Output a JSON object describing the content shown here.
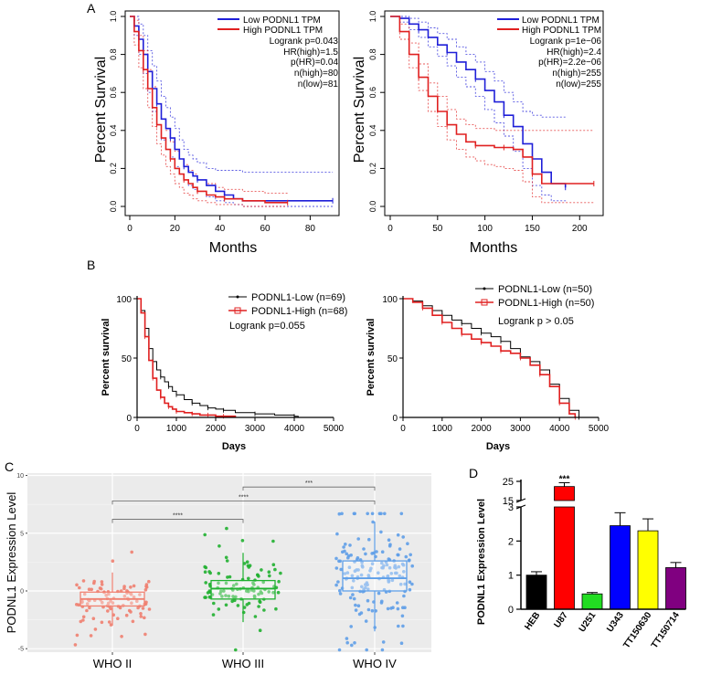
{
  "panel_labels": {
    "a": "A",
    "b": "B",
    "c": "C",
    "d": "D"
  },
  "colors": {
    "low": "#1f1fd8",
    "high": "#e02020",
    "black": "#000000",
    "who2": "#f08070",
    "who3": "#20b030",
    "who4": "#5f9fe8",
    "grid_bg": "#ebebeb"
  },
  "chart_data": [
    {
      "id": "A1",
      "type": "line",
      "ylabel": "Percent Survival",
      "xlabel": "Months",
      "xlim": [
        0,
        92
      ],
      "ylim": [
        0,
        1
      ],
      "xticks": [
        0,
        20,
        40,
        60,
        80
      ],
      "yticks": [
        0.0,
        0.2,
        0.4,
        0.6,
        0.8,
        1.0
      ],
      "legend": [
        "Low PODNL1 TPM",
        "High PODNL1 TPM"
      ],
      "stats": [
        "Logrank p=0.043",
        "HR(high)=1.5",
        "p(HR)=0.04",
        "n(high)=80",
        "n(low)=81"
      ],
      "series": [
        {
          "name": "Low PODNL1 TPM",
          "color": "#1f1fd8",
          "x": [
            0,
            2,
            4,
            6,
            8,
            10,
            12,
            14,
            16,
            18,
            20,
            22,
            24,
            26,
            28,
            30,
            34,
            38,
            42,
            46,
            50,
            90
          ],
          "y": [
            1,
            0.95,
            0.88,
            0.8,
            0.71,
            0.62,
            0.54,
            0.46,
            0.41,
            0.36,
            0.3,
            0.25,
            0.21,
            0.18,
            0.16,
            0.14,
            0.11,
            0.08,
            0.06,
            0.04,
            0.03,
            0.03
          ],
          "upper": [
            1,
            1,
            0.96,
            0.9,
            0.82,
            0.74,
            0.66,
            0.58,
            0.52,
            0.47,
            0.41,
            0.35,
            0.3,
            0.27,
            0.25,
            0.23,
            0.2,
            0.19,
            0.19,
            0.19,
            0.18,
            0.18
          ],
          "lower": [
            1,
            0.9,
            0.8,
            0.7,
            0.6,
            0.5,
            0.43,
            0.35,
            0.3,
            0.26,
            0.21,
            0.17,
            0.14,
            0.11,
            0.09,
            0.08,
            0.05,
            0.03,
            0.02,
            0.01,
            0.0,
            0.0
          ]
        },
        {
          "name": "High PODNL1 TPM",
          "color": "#e02020",
          "x": [
            0,
            2,
            4,
            6,
            8,
            10,
            12,
            14,
            16,
            18,
            20,
            22,
            24,
            26,
            28,
            30,
            34,
            38,
            42,
            50,
            60,
            70
          ],
          "y": [
            1,
            0.92,
            0.82,
            0.72,
            0.62,
            0.52,
            0.43,
            0.36,
            0.3,
            0.25,
            0.2,
            0.17,
            0.14,
            0.12,
            0.1,
            0.08,
            0.06,
            0.05,
            0.04,
            0.03,
            0.02,
            0.02
          ],
          "upper": [
            1,
            0.98,
            0.9,
            0.82,
            0.72,
            0.63,
            0.54,
            0.46,
            0.4,
            0.34,
            0.29,
            0.25,
            0.22,
            0.19,
            0.17,
            0.14,
            0.12,
            0.1,
            0.09,
            0.08,
            0.07,
            0.07
          ],
          "lower": [
            1,
            0.85,
            0.73,
            0.62,
            0.52,
            0.42,
            0.33,
            0.27,
            0.21,
            0.17,
            0.12,
            0.1,
            0.07,
            0.06,
            0.04,
            0.03,
            0.02,
            0.01,
            0.01,
            0.0,
            0.0,
            0.0
          ]
        }
      ]
    },
    {
      "id": "A2",
      "type": "line",
      "ylabel": "Percent Survival",
      "xlabel": "Months",
      "xlim": [
        0,
        220
      ],
      "ylim": [
        0,
        1
      ],
      "xticks": [
        0,
        50,
        100,
        150,
        200
      ],
      "yticks": [
        0.0,
        0.2,
        0.4,
        0.6,
        0.8,
        1.0
      ],
      "legend": [
        "Low PODNL1 TPM",
        "High PODNL1 TPM"
      ],
      "stats": [
        "Logrank p=1e−06",
        "HR(high)=2.4",
        "p(HR)=2.2e−06",
        "n(high)=255",
        "n(low)=255"
      ],
      "series": [
        {
          "name": "Low PODNL1 TPM",
          "color": "#1f1fd8",
          "x": [
            0,
            10,
            20,
            30,
            40,
            50,
            60,
            70,
            80,
            90,
            100,
            110,
            120,
            130,
            140,
            150,
            160,
            170,
            185
          ],
          "y": [
            1,
            0.99,
            0.96,
            0.93,
            0.89,
            0.85,
            0.81,
            0.76,
            0.72,
            0.67,
            0.61,
            0.55,
            0.48,
            0.42,
            0.33,
            0.25,
            0.18,
            0.12,
            0.1
          ],
          "upper": [
            1,
            1,
            0.99,
            0.97,
            0.94,
            0.91,
            0.88,
            0.84,
            0.8,
            0.76,
            0.71,
            0.66,
            0.6,
            0.55,
            0.5,
            0.48,
            0.47,
            0.47,
            0.47
          ],
          "lower": [
            1,
            0.97,
            0.93,
            0.89,
            0.84,
            0.79,
            0.74,
            0.68,
            0.63,
            0.58,
            0.51,
            0.44,
            0.37,
            0.29,
            0.2,
            0.11,
            0.06,
            0.03,
            0.02
          ]
        },
        {
          "name": "High PODNL1 TPM",
          "color": "#e02020",
          "x": [
            0,
            10,
            20,
            30,
            40,
            50,
            60,
            70,
            80,
            90,
            100,
            110,
            120,
            130,
            140,
            150,
            160,
            170,
            215
          ],
          "y": [
            1,
            0.92,
            0.8,
            0.68,
            0.58,
            0.5,
            0.43,
            0.38,
            0.34,
            0.32,
            0.32,
            0.31,
            0.31,
            0.3,
            0.26,
            0.17,
            0.12,
            0.12,
            0.12
          ],
          "upper": [
            1,
            0.96,
            0.86,
            0.75,
            0.65,
            0.58,
            0.51,
            0.46,
            0.43,
            0.41,
            0.41,
            0.4,
            0.4,
            0.4,
            0.4,
            0.4,
            0.4,
            0.4,
            0.4
          ],
          "lower": [
            1,
            0.88,
            0.73,
            0.61,
            0.5,
            0.42,
            0.35,
            0.3,
            0.26,
            0.24,
            0.22,
            0.21,
            0.2,
            0.19,
            0.13,
            0.05,
            0.02,
            0.02,
            0.02
          ]
        }
      ]
    },
    {
      "id": "B1",
      "type": "line",
      "ylabel": "Percent survival",
      "xlabel": "Days",
      "xlim": [
        0,
        5000
      ],
      "ylim": [
        0,
        100
      ],
      "xticks": [
        0,
        1000,
        2000,
        3000,
        4000,
        5000
      ],
      "yticks": [
        0,
        50,
        100
      ],
      "legend": [
        "PODNL1-Low (n=69)",
        "PODNL1-High (n=68)"
      ],
      "stats": [
        "Logrank p=0.055"
      ],
      "series": [
        {
          "name": "PODNL1-Low (n=69)",
          "color": "#000000",
          "x": [
            0,
            100,
            200,
            300,
            400,
            500,
            600,
            700,
            800,
            900,
            1000,
            1200,
            1400,
            1600,
            1800,
            2000,
            2200,
            2500,
            3000,
            3500,
            4000,
            4100
          ],
          "y": [
            100,
            90,
            75,
            58,
            47,
            40,
            34,
            30,
            26,
            22,
            19,
            15,
            12,
            10,
            8,
            7,
            6,
            4,
            3,
            2,
            1,
            0
          ]
        },
        {
          "name": "PODNL1-High (n=68)",
          "color": "#e02020",
          "x": [
            0,
            100,
            200,
            300,
            400,
            500,
            600,
            700,
            800,
            900,
            1000,
            1200,
            1400,
            1600,
            1800,
            2000,
            2200,
            2500
          ],
          "y": [
            100,
            88,
            68,
            48,
            33,
            23,
            17,
            12,
            9,
            7,
            5,
            4,
            3,
            2,
            2,
            1,
            1,
            0
          ]
        }
      ]
    },
    {
      "id": "B2",
      "type": "line",
      "ylabel": "Percent survival",
      "xlabel": "Days",
      "xlim": [
        0,
        5000
      ],
      "ylim": [
        0,
        100
      ],
      "xticks": [
        0,
        1000,
        2000,
        3000,
        4000,
        5000
      ],
      "yticks": [
        0,
        50,
        100
      ],
      "legend": [
        "PODNL1-Low (n=50)",
        "PODNL1-High (n=50)"
      ],
      "stats": [
        "Logrank p > 0.05"
      ],
      "series": [
        {
          "name": "PODNL1-Low (n=50)",
          "color": "#000000",
          "x": [
            0,
            250,
            500,
            750,
            1000,
            1250,
            1500,
            1750,
            2000,
            2250,
            2500,
            2750,
            3000,
            3250,
            3500,
            3750,
            4000,
            4250,
            4500
          ],
          "y": [
            100,
            98,
            94,
            90,
            86,
            82,
            79,
            75,
            71,
            68,
            64,
            58,
            51,
            47,
            40,
            28,
            16,
            6,
            0
          ]
        },
        {
          "name": "PODNL1-High (n=50)",
          "color": "#e02020",
          "x": [
            0,
            250,
            500,
            750,
            1000,
            1250,
            1500,
            1750,
            2000,
            2250,
            2500,
            2750,
            3000,
            3250,
            3500,
            3750,
            4000,
            4250,
            4400
          ],
          "y": [
            100,
            97,
            92,
            86,
            80,
            75,
            70,
            66,
            63,
            60,
            56,
            54,
            50,
            44,
            36,
            26,
            12,
            3,
            0
          ]
        }
      ]
    },
    {
      "id": "C",
      "type": "scatter",
      "ylabel": "PODNL1 Expression Level",
      "xlabel": "",
      "categories": [
        "WHO II",
        "WHO III",
        "WHO IV"
      ],
      "ylim": [
        -5.3,
        10.2
      ],
      "yticks": [
        -5,
        0,
        5,
        10
      ],
      "box": [
        {
          "q1": -1.3,
          "median": -0.7,
          "q3": -0.1,
          "whisker_low": -3.0,
          "whisker_high": 1.6,
          "n": 100
        },
        {
          "q1": -0.7,
          "median": 0.2,
          "q3": 0.9,
          "whisker_low": -2.7,
          "whisker_high": 3.3,
          "n": 105
        },
        {
          "q1": 0.0,
          "median": 1.1,
          "q3": 2.6,
          "whisker_low": -3.5,
          "whisker_high": 6.0,
          "n": 170
        }
      ],
      "significance": [
        {
          "from": "WHO III",
          "to": "WHO IV",
          "label": "***"
        },
        {
          "from": "WHO II",
          "to": "WHO IV",
          "label": "****"
        },
        {
          "from": "WHO II",
          "to": "WHO III",
          "label": "****"
        }
      ]
    },
    {
      "id": "D",
      "type": "bar",
      "ylabel": "PODNL1 Expression Level",
      "categories": [
        "HEB",
        "U87",
        "U251",
        "U343",
        "TT150630",
        "TT150714"
      ],
      "values": [
        1.0,
        22.3,
        0.45,
        2.45,
        2.3,
        1.22
      ],
      "errors": [
        0.1,
        2.0,
        0.04,
        0.38,
        0.35,
        0.15
      ],
      "bar_colors": [
        "#000000",
        "#ff0000",
        "#22dd22",
        "#0000ff",
        "#ffff00",
        "#800080"
      ],
      "yticks_lower": [
        0,
        1,
        2,
        3
      ],
      "yticks_upper": [
        15,
        25
      ],
      "axis_break": [
        3,
        15
      ],
      "annotations": [
        {
          "category": "U87",
          "label": "***"
        }
      ]
    }
  ]
}
